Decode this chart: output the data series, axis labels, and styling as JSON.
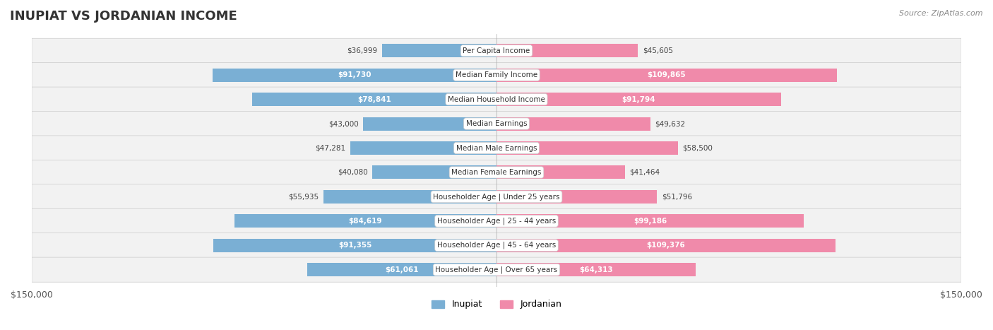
{
  "title": "INUPIAT VS JORDANIAN INCOME",
  "source": "Source: ZipAtlas.com",
  "categories": [
    "Per Capita Income",
    "Median Family Income",
    "Median Household Income",
    "Median Earnings",
    "Median Male Earnings",
    "Median Female Earnings",
    "Householder Age | Under 25 years",
    "Householder Age | 25 - 44 years",
    "Householder Age | 45 - 64 years",
    "Householder Age | Over 65 years"
  ],
  "inupiat_values": [
    36999,
    91730,
    78841,
    43000,
    47281,
    40080,
    55935,
    84619,
    91355,
    61061
  ],
  "jordanian_values": [
    45605,
    109865,
    91794,
    49632,
    58500,
    41464,
    51796,
    99186,
    109376,
    64313
  ],
  "inupiat_labels": [
    "$36,999",
    "$91,730",
    "$78,841",
    "$43,000",
    "$47,281",
    "$40,080",
    "$55,935",
    "$84,619",
    "$91,355",
    "$61,061"
  ],
  "jordanian_labels": [
    "$45,605",
    "$109,865",
    "$91,794",
    "$49,632",
    "$58,500",
    "$41,464",
    "$51,796",
    "$99,186",
    "$109,376",
    "$64,313"
  ],
  "inupiat_color": "#7aafd4",
  "jordanian_color": "#f08aaa",
  "inupiat_color_strong": "#5b9ac8",
  "jordanian_color_strong": "#e8608a",
  "max_value": 150000,
  "xlim": 150000,
  "bar_height": 0.55,
  "row_bg_light": "#f0f0f0",
  "row_bg_white": "#ffffff",
  "inupiat_label_color_dark": "#666666",
  "jordanian_label_color_dark": "#666666",
  "inupiat_label_color_white": "#ffffff",
  "jordanian_label_color_white": "#ffffff",
  "legend_inupiat": "Inupiat",
  "legend_jordanian": "Jordanian"
}
